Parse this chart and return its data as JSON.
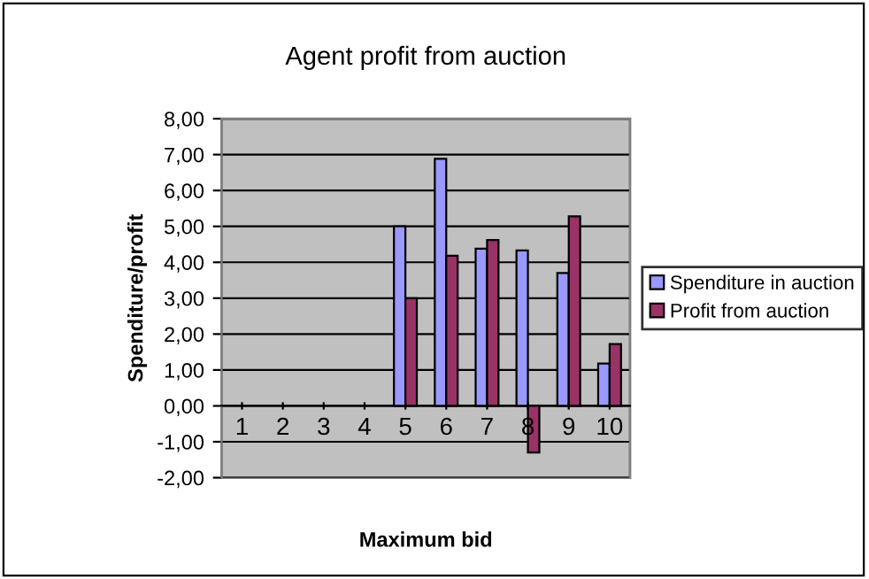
{
  "chart_data": {
    "type": "bar",
    "title": "Agent profit from auction",
    "xlabel": "Maximum bid",
    "ylabel": "Spenditure/profit",
    "categories": [
      "1",
      "2",
      "3",
      "4",
      "5",
      "6",
      "7",
      "8",
      "9",
      "10"
    ],
    "series": [
      {
        "name": "Spenditure in auction",
        "color": "#9999ff",
        "values": [
          null,
          null,
          null,
          null,
          5.0,
          6.88,
          4.38,
          4.33,
          3.7,
          1.18
        ]
      },
      {
        "name": "Profit from auction",
        "color": "#993366",
        "values": [
          null,
          null,
          null,
          null,
          3.0,
          4.18,
          4.62,
          -1.3,
          5.28,
          1.72
        ]
      }
    ],
    "ylim": [
      -2,
      8
    ],
    "yticks": [
      {
        "value": -2,
        "label": "-2,00"
      },
      {
        "value": -1,
        "label": "-1,00"
      },
      {
        "value": 0,
        "label": "0,00"
      },
      {
        "value": 1,
        "label": "1,00"
      },
      {
        "value": 2,
        "label": "2,00"
      },
      {
        "value": 3,
        "label": "3,00"
      },
      {
        "value": 4,
        "label": "4,00"
      },
      {
        "value": 5,
        "label": "5,00"
      },
      {
        "value": 6,
        "label": "6,00"
      },
      {
        "value": 7,
        "label": "7,00"
      },
      {
        "value": 8,
        "label": "8,00"
      }
    ],
    "grid": "y",
    "legend": "right"
  }
}
